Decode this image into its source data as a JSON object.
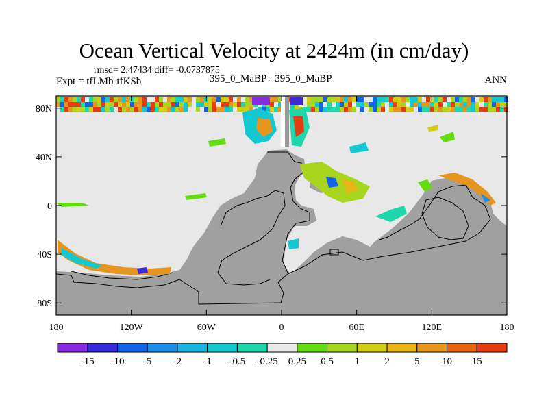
{
  "chart_data": {
    "type": "heatmap",
    "title": "Ocean Vertical Velocity at 2424m (in cm/day)",
    "stats_text": "rmsd= 2.47434 diff= -0.0737875",
    "experiment_text": "Expt = tfLMb-tfKSb",
    "case_text": "395_0_MaBP - 395_0_MaBP",
    "season": "ANN",
    "variable": "Ocean vertical velocity difference",
    "depth": "2424m",
    "units": "cm/day",
    "x_axis": {
      "range": [
        -180,
        180
      ],
      "ticks": [
        {
          "value": -180,
          "label": "180"
        },
        {
          "value": -120,
          "label": "120W"
        },
        {
          "value": -60,
          "label": "60W"
        },
        {
          "value": 0,
          "label": "0"
        },
        {
          "value": 60,
          "label": "60E"
        },
        {
          "value": 120,
          "label": "120E"
        },
        {
          "value": 180,
          "label": "180"
        }
      ]
    },
    "y_axis": {
      "range": [
        -90,
        90
      ],
      "ticks": [
        {
          "value": 80,
          "label": "80N"
        },
        {
          "value": 40,
          "label": "40N"
        },
        {
          "value": 0,
          "label": "0"
        },
        {
          "value": -40,
          "label": "40S"
        },
        {
          "value": -80,
          "label": "80S"
        }
      ]
    },
    "colorbar": {
      "colors": [
        "#8a2be2",
        "#3a2bd8",
        "#1464e6",
        "#1e8ce6",
        "#18b4dc",
        "#14c8d2",
        "#1ed7aa",
        "#e8e8e8",
        "#64dc14",
        "#a8d61e",
        "#d2cd14",
        "#e6b414",
        "#e6961e",
        "#e66414",
        "#e63c14"
      ],
      "labels": [
        "-15",
        "-10",
        "-5",
        "-2",
        "-1",
        "-0.5",
        "-0.25",
        "0.25",
        "0.5",
        "1",
        "2",
        "5",
        "10",
        "15"
      ]
    },
    "land_color": "#a0a0a0",
    "near_zero_color": "#e8e8e8"
  }
}
